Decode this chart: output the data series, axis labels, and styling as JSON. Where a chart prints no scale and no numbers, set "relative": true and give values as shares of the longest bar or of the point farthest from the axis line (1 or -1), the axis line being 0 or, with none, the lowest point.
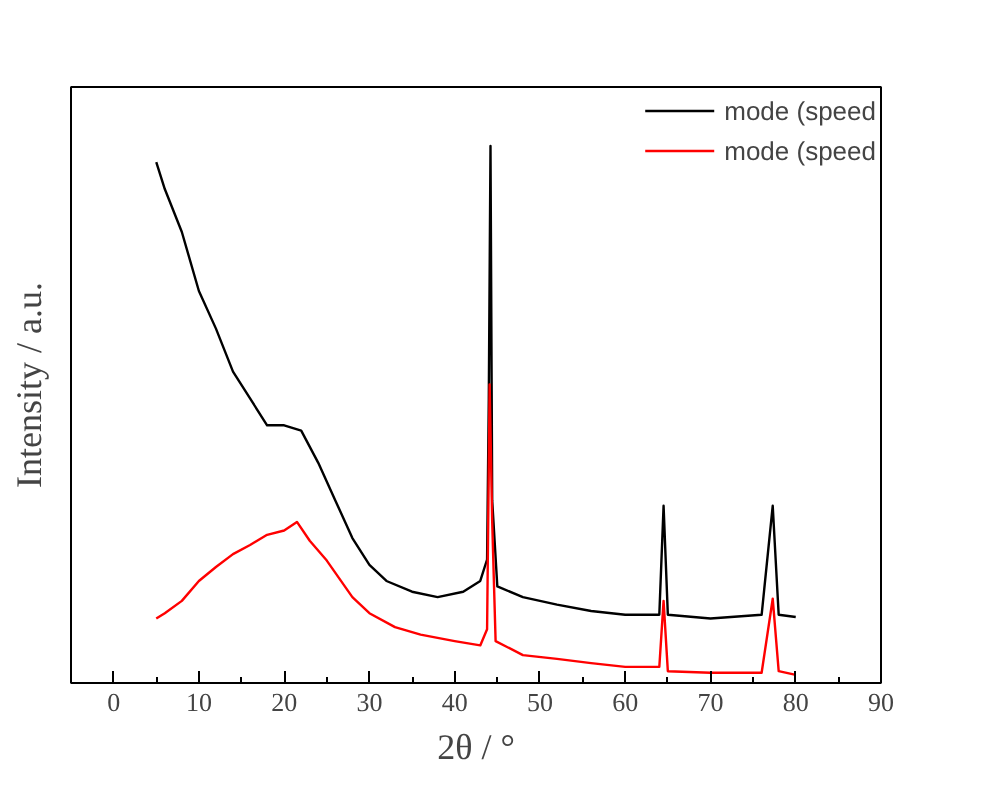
{
  "chart_data": {
    "type": "line",
    "relative": true,
    "xlabel": "2θ / °",
    "ylabel": "Intensity / a.u.",
    "xlim": [
      -5,
      90
    ],
    "xticks": [
      0,
      10,
      20,
      30,
      40,
      50,
      60,
      70,
      80,
      90
    ],
    "grid": false,
    "legend": "top right",
    "tick_labels": "x",
    "series": [
      {
        "name": "mode (speed",
        "color": "#000000",
        "x": [
          5,
          6,
          8,
          10,
          12,
          14,
          16,
          18,
          20,
          22,
          24,
          26,
          28,
          30,
          32,
          35,
          38,
          41,
          43,
          43.8,
          44.0,
          44.2,
          44.4,
          45,
          48,
          52,
          56,
          60,
          64,
          64.5,
          65,
          70,
          76,
          77.3,
          78,
          80
        ],
        "values": [
          0.97,
          0.92,
          0.84,
          0.73,
          0.66,
          0.58,
          0.53,
          0.48,
          0.48,
          0.47,
          0.41,
          0.34,
          0.27,
          0.22,
          0.19,
          0.17,
          0.16,
          0.17,
          0.19,
          0.23,
          0.53,
          1.0,
          0.34,
          0.18,
          0.16,
          0.146,
          0.134,
          0.127,
          0.127,
          0.33,
          0.127,
          0.12,
          0.127,
          0.33,
          0.127,
          0.123
        ]
      },
      {
        "name": "mode (speed",
        "color": "#ff0000",
        "x": [
          5,
          6,
          8,
          10,
          12,
          14,
          16,
          18,
          20,
          21.5,
          23,
          25,
          28,
          30,
          33,
          36,
          40,
          43,
          43.8,
          44.1,
          44.4,
          44.8,
          48,
          52,
          56,
          60,
          64,
          64.5,
          65,
          70,
          76,
          77.3,
          78,
          80
        ],
        "values": [
          0.12,
          0.13,
          0.153,
          0.19,
          0.216,
          0.24,
          0.257,
          0.276,
          0.284,
          0.3,
          0.265,
          0.228,
          0.16,
          0.13,
          0.104,
          0.09,
          0.078,
          0.07,
          0.1,
          0.556,
          0.3,
          0.078,
          0.052,
          0.045,
          0.037,
          0.03,
          0.03,
          0.153,
          0.022,
          0.019,
          0.019,
          0.157,
          0.022,
          0.015
        ]
      }
    ]
  }
}
